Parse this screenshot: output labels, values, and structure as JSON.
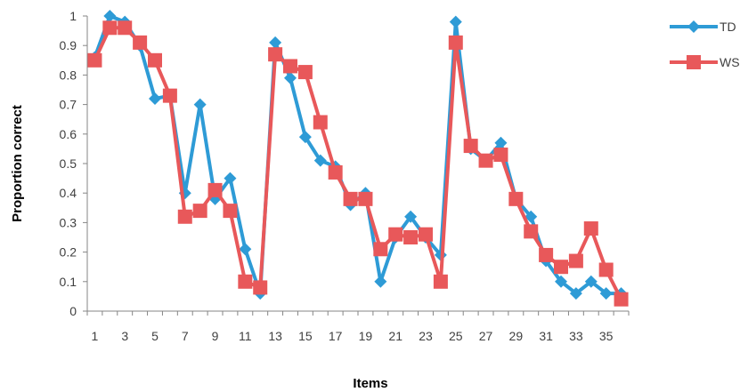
{
  "chart_data": {
    "type": "line",
    "xlabel": "Items",
    "ylabel": "Proportion correct",
    "ylim": [
      0,
      1
    ],
    "ytick_step": 0.1,
    "y_ticks": [
      "0",
      "0.1",
      "0.2",
      "0.3",
      "0.4",
      "0.5",
      "0.6",
      "0.7",
      "0.8",
      "0.9",
      "1"
    ],
    "x": [
      1,
      2,
      3,
      4,
      5,
      6,
      7,
      8,
      9,
      10,
      11,
      12,
      13,
      14,
      15,
      16,
      17,
      18,
      19,
      20,
      21,
      22,
      23,
      24,
      25,
      26,
      27,
      28,
      29,
      30,
      31,
      32,
      33,
      34,
      35,
      36
    ],
    "x_tick_labels": [
      "1",
      "3",
      "5",
      "7",
      "9",
      "11",
      "13",
      "15",
      "17",
      "19",
      "21",
      "23",
      "25",
      "27",
      "29",
      "31",
      "33",
      "35"
    ],
    "grid": false,
    "legend_placement": "right",
    "series": [
      {
        "name": "TD",
        "color": "#2E9BD6",
        "marker": "diamond",
        "values": [
          0.86,
          1.0,
          0.98,
          0.9,
          0.72,
          0.73,
          0.4,
          0.7,
          0.38,
          0.45,
          0.21,
          0.06,
          0.91,
          0.79,
          0.59,
          0.51,
          0.49,
          0.36,
          0.4,
          0.1,
          0.25,
          0.32,
          0.25,
          0.19,
          0.98,
          0.55,
          0.51,
          0.57,
          0.38,
          0.32,
          0.17,
          0.1,
          0.06,
          0.1,
          0.06,
          0.06
        ]
      },
      {
        "name": "WS",
        "color": "#E8585A",
        "marker": "square",
        "values": [
          0.85,
          0.96,
          0.96,
          0.91,
          0.85,
          0.73,
          0.32,
          0.34,
          0.41,
          0.34,
          0.1,
          0.08,
          0.87,
          0.83,
          0.81,
          0.64,
          0.47,
          0.38,
          0.38,
          0.21,
          0.26,
          0.25,
          0.26,
          0.1,
          0.91,
          0.56,
          0.51,
          0.53,
          0.38,
          0.27,
          0.19,
          0.15,
          0.17,
          0.28,
          0.14,
          0.04
        ]
      }
    ]
  }
}
